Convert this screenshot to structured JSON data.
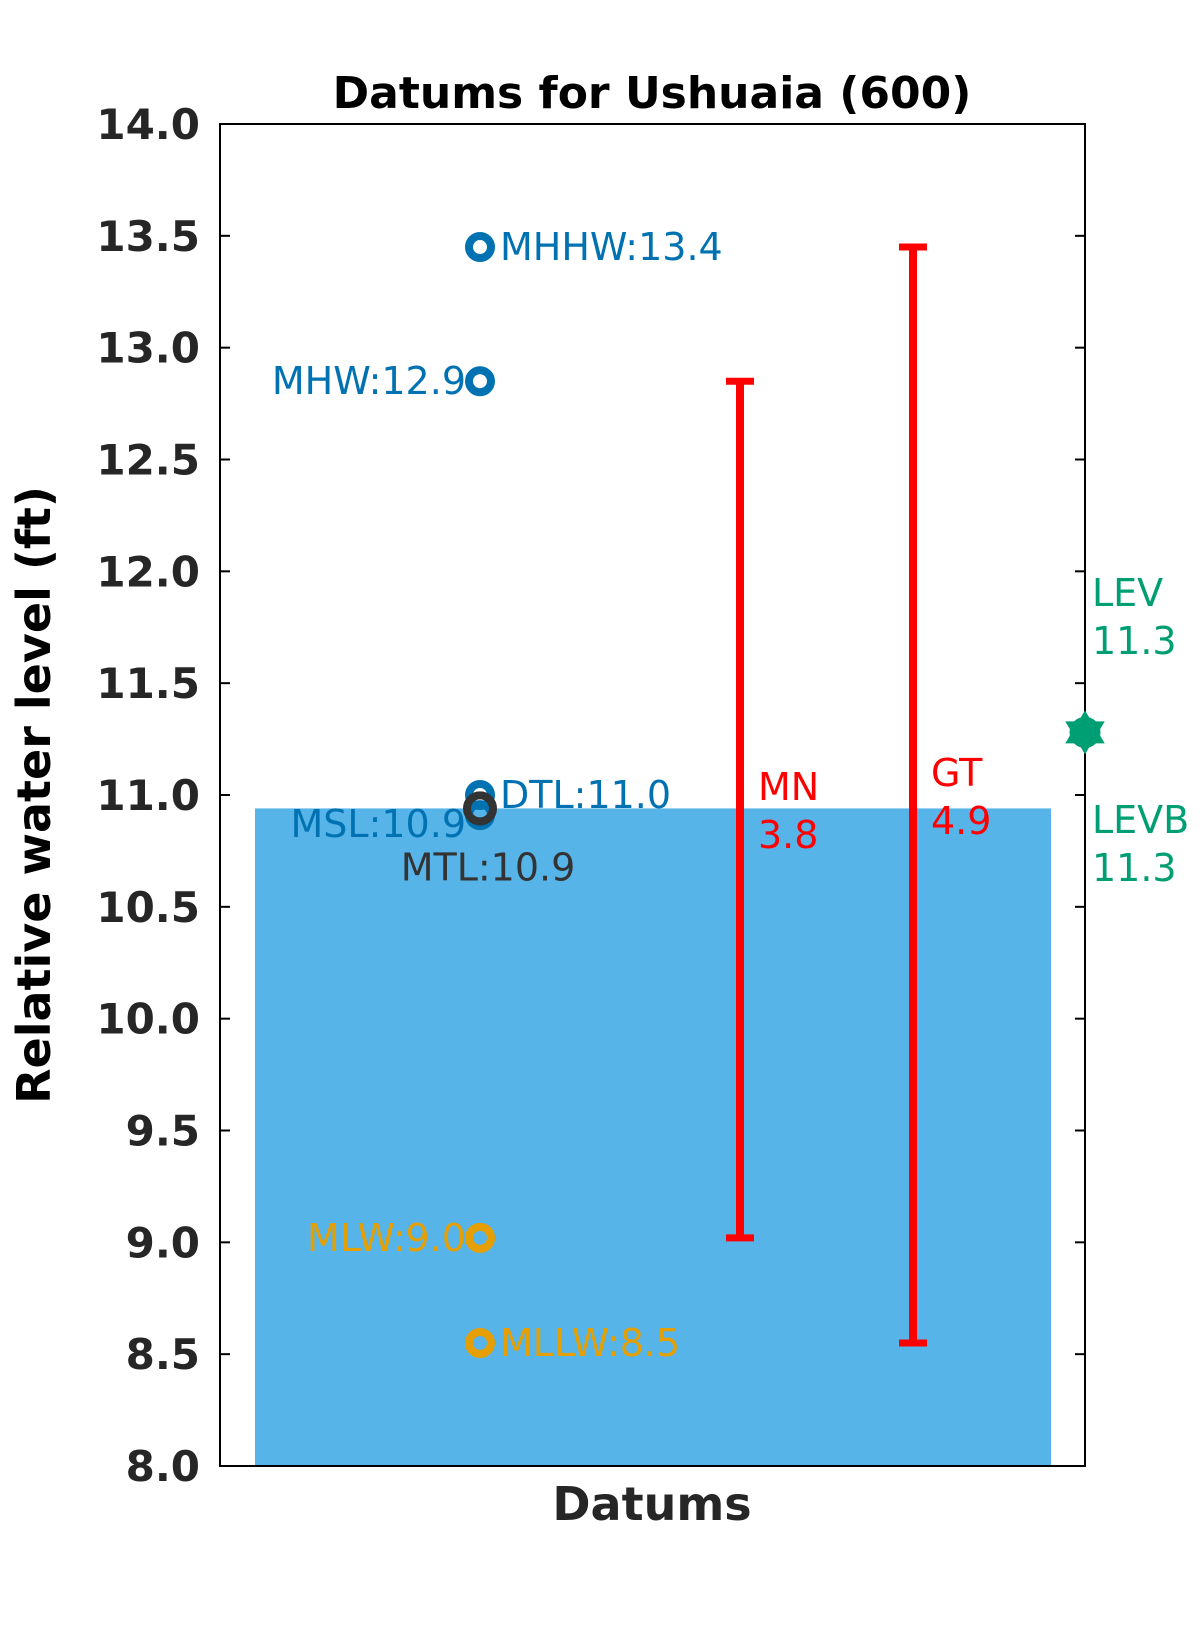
{
  "chart_data": {
    "type": "scatter",
    "title": "Datums for Ushuaia (600)",
    "xlabel": "Datums",
    "ylabel": "Relative water level (ft)",
    "ylim": [
      8.0,
      14.0
    ],
    "yticks": [
      "8.0",
      "8.5",
      "9.0",
      "9.5",
      "10.0",
      "10.5",
      "11.0",
      "11.5",
      "12.0",
      "12.5",
      "13.0",
      "13.5",
      "14.0"
    ],
    "grid": false,
    "water_level": 10.94,
    "datums": [
      {
        "label": "MHHW:13.4",
        "value": 13.45,
        "color": "#0072b2",
        "label_side": "right"
      },
      {
        "label": "MHW:12.9",
        "value": 12.85,
        "color": "#0072b2",
        "label_side": "left"
      },
      {
        "label": "DTL:11.0",
        "value": 11.0,
        "color": "#0072b2",
        "label_side": "right"
      },
      {
        "label": "MSL:10.9",
        "value": 10.91,
        "color": "#0072b2",
        "label_side": "left"
      },
      {
        "label": "MTL:10.9",
        "value": 10.94,
        "color": "#333333",
        "label_side": "below"
      },
      {
        "label": "MLW:9.0",
        "value": 9.02,
        "color": "#e69f00",
        "label_side": "left"
      },
      {
        "label": "MLLW:8.5",
        "value": 8.55,
        "color": "#e69f00",
        "label_side": "right"
      }
    ],
    "ranges": [
      {
        "name": "MN",
        "value_label": "3.8",
        "low": 9.02,
        "high": 12.85,
        "color": "#ff0000"
      },
      {
        "name": "GT",
        "value_label": "4.9",
        "low": 8.55,
        "high": 13.45,
        "color": "#ff0000"
      }
    ],
    "extremes": [
      {
        "name": "LEV",
        "value_label": "11.3",
        "value": 11.28,
        "color": "#009e73",
        "label_side": "above"
      },
      {
        "name": "LEVB",
        "value_label": "11.3",
        "value": 11.28,
        "color": "#009e73",
        "label_side": "below"
      }
    ],
    "colors": {
      "water_fill": "#56b4e9",
      "axis": "#000000"
    }
  }
}
